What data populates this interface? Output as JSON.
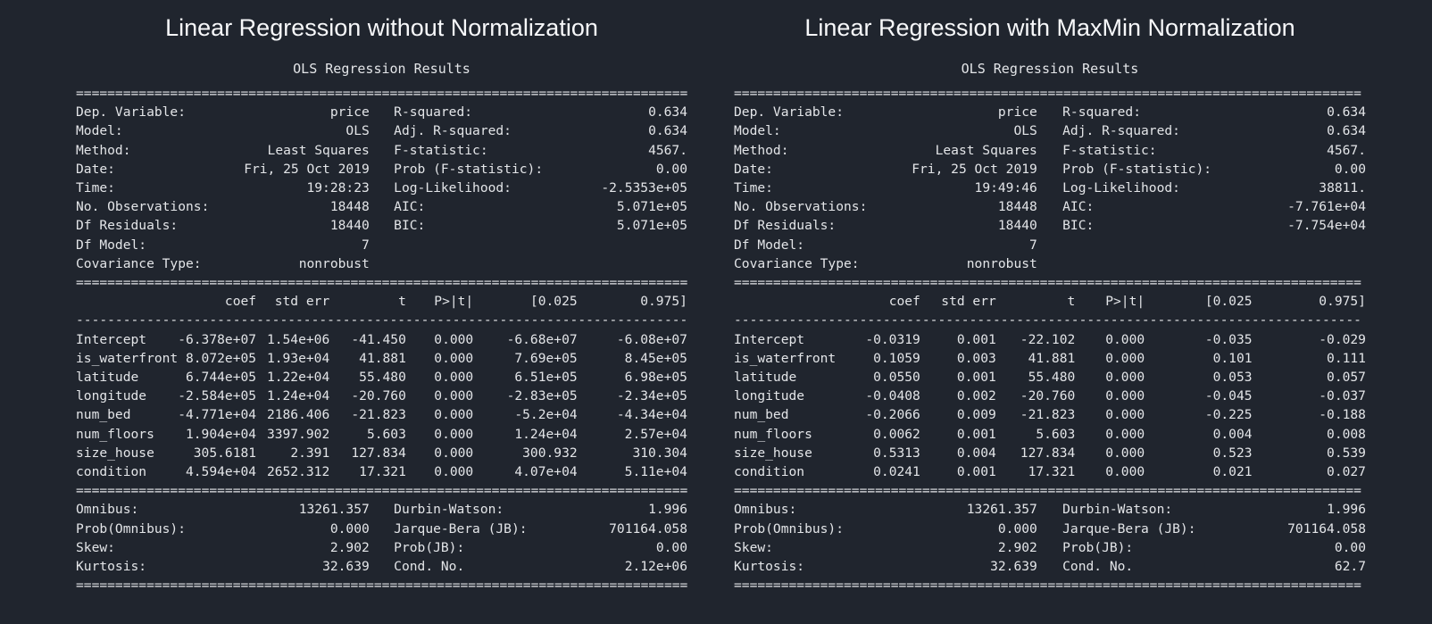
{
  "colors": {
    "background": "#20252e",
    "text": "#e3e5e8",
    "title_text": "#f7f8fa"
  },
  "panels": [
    {
      "title": "Linear Regression without Normalization",
      "subtitle": "OLS Regression Results",
      "sep_eq": "================================================================================",
      "sep_dash": "--------------------------------------------------------------------------------",
      "info_rows": [
        {
          "l_label": "Dep. Variable:",
          "l_value": "price",
          "r_label": "R-squared:",
          "r_value": "0.634"
        },
        {
          "l_label": "Model:",
          "l_value": "OLS",
          "r_label": "Adj. R-squared:",
          "r_value": "0.634"
        },
        {
          "l_label": "Method:",
          "l_value": "Least Squares",
          "r_label": "F-statistic:",
          "r_value": "4567."
        },
        {
          "l_label": "Date:",
          "l_value": "Fri, 25 Oct 2019",
          "r_label": "Prob (F-statistic):",
          "r_value": "0.00"
        },
        {
          "l_label": "Time:",
          "l_value": "19:28:23",
          "r_label": "Log-Likelihood:",
          "r_value": "-2.5353e+05"
        },
        {
          "l_label": "No. Observations:",
          "l_value": "18448",
          "r_label": "AIC:",
          "r_value": "5.071e+05"
        },
        {
          "l_label": "Df Residuals:",
          "l_value": "18440",
          "r_label": "BIC:",
          "r_value": "5.071e+05"
        },
        {
          "l_label": "Df Model:",
          "l_value": "7",
          "r_label": "",
          "r_value": ""
        },
        {
          "l_label": "Covariance Type:",
          "l_value": "nonrobust",
          "r_label": "",
          "r_value": ""
        }
      ],
      "coef_table": {
        "headers": [
          "",
          "coef",
          "std err",
          "t",
          "P>|t|",
          "[0.025",
          "0.975]"
        ],
        "rows": [
          [
            "Intercept",
            "-6.378e+07",
            "1.54e+06",
            "-41.450",
            "0.000",
            "-6.68e+07",
            "-6.08e+07"
          ],
          [
            "is_waterfront",
            "8.072e+05",
            "1.93e+04",
            "41.881",
            "0.000",
            "7.69e+05",
            "8.45e+05"
          ],
          [
            "latitude",
            "6.744e+05",
            "1.22e+04",
            "55.480",
            "0.000",
            "6.51e+05",
            "6.98e+05"
          ],
          [
            "longitude",
            "-2.584e+05",
            "1.24e+04",
            "-20.760",
            "0.000",
            "-2.83e+05",
            "-2.34e+05"
          ],
          [
            "num_bed",
            "-4.771e+04",
            "2186.406",
            "-21.823",
            "0.000",
            "-5.2e+04",
            "-4.34e+04"
          ],
          [
            "num_floors",
            "1.904e+04",
            "3397.902",
            "5.603",
            "0.000",
            "1.24e+04",
            "2.57e+04"
          ],
          [
            "size_house",
            "305.6181",
            "2.391",
            "127.834",
            "0.000",
            "300.932",
            "310.304"
          ],
          [
            "condition",
            "4.594e+04",
            "2652.312",
            "17.321",
            "0.000",
            "4.07e+04",
            "5.11e+04"
          ]
        ]
      },
      "stats_rows": [
        {
          "l_label": "Omnibus:",
          "l_value": "13261.357",
          "r_label": "Durbin-Watson:",
          "r_value": "1.996"
        },
        {
          "l_label": "Prob(Omnibus):",
          "l_value": "0.000",
          "r_label": "Jarque-Bera (JB):",
          "r_value": "701164.058"
        },
        {
          "l_label": "Skew:",
          "l_value": "2.902",
          "r_label": "Prob(JB):",
          "r_value": "0.00"
        },
        {
          "l_label": "Kurtosis:",
          "l_value": "32.639",
          "r_label": "Cond. No.",
          "r_value": "2.12e+06"
        }
      ]
    },
    {
      "title": "Linear Regression with MaxMin Normalization",
      "subtitle": "OLS Regression Results",
      "sep_eq": "================================================================================",
      "sep_dash": "--------------------------------------------------------------------------------",
      "info_rows": [
        {
          "l_label": "Dep. Variable:",
          "l_value": "price",
          "r_label": "R-squared:",
          "r_value": "0.634"
        },
        {
          "l_label": "Model:",
          "l_value": "OLS",
          "r_label": "Adj. R-squared:",
          "r_value": "0.634"
        },
        {
          "l_label": "Method:",
          "l_value": "Least Squares",
          "r_label": "F-statistic:",
          "r_value": "4567."
        },
        {
          "l_label": "Date:",
          "l_value": "Fri, 25 Oct 2019",
          "r_label": "Prob (F-statistic):",
          "r_value": "0.00"
        },
        {
          "l_label": "Time:",
          "l_value": "19:49:46",
          "r_label": "Log-Likelihood:",
          "r_value": "38811."
        },
        {
          "l_label": "No. Observations:",
          "l_value": "18448",
          "r_label": "AIC:",
          "r_value": "-7.761e+04"
        },
        {
          "l_label": "Df Residuals:",
          "l_value": "18440",
          "r_label": "BIC:",
          "r_value": "-7.754e+04"
        },
        {
          "l_label": "Df Model:",
          "l_value": "7",
          "r_label": "",
          "r_value": ""
        },
        {
          "l_label": "Covariance Type:",
          "l_value": "nonrobust",
          "r_label": "",
          "r_value": ""
        }
      ],
      "coef_table": {
        "headers": [
          "",
          "coef",
          "std err",
          "t",
          "P>|t|",
          "[0.025",
          "0.975]"
        ],
        "rows": [
          [
            "Intercept",
            "-0.0319",
            "0.001",
            "-22.102",
            "0.000",
            "-0.035",
            "-0.029"
          ],
          [
            "is_waterfront",
            "0.1059",
            "0.003",
            "41.881",
            "0.000",
            "0.101",
            "0.111"
          ],
          [
            "latitude",
            "0.0550",
            "0.001",
            "55.480",
            "0.000",
            "0.053",
            "0.057"
          ],
          [
            "longitude",
            "-0.0408",
            "0.002",
            "-20.760",
            "0.000",
            "-0.045",
            "-0.037"
          ],
          [
            "num_bed",
            "-0.2066",
            "0.009",
            "-21.823",
            "0.000",
            "-0.225",
            "-0.188"
          ],
          [
            "num_floors",
            "0.0062",
            "0.001",
            "5.603",
            "0.000",
            "0.004",
            "0.008"
          ],
          [
            "size_house",
            "0.5313",
            "0.004",
            "127.834",
            "0.000",
            "0.523",
            "0.539"
          ],
          [
            "condition",
            "0.0241",
            "0.001",
            "17.321",
            "0.000",
            "0.021",
            "0.027"
          ]
        ]
      },
      "stats_rows": [
        {
          "l_label": "Omnibus:",
          "l_value": "13261.357",
          "r_label": "Durbin-Watson:",
          "r_value": "1.996"
        },
        {
          "l_label": "Prob(Omnibus):",
          "l_value": "0.000",
          "r_label": "Jarque-Bera (JB):",
          "r_value": "701164.058"
        },
        {
          "l_label": "Skew:",
          "l_value": "2.902",
          "r_label": "Prob(JB):",
          "r_value": "0.00"
        },
        {
          "l_label": "Kurtosis:",
          "l_value": "32.639",
          "r_label": "Cond. No.",
          "r_value": "62.7"
        }
      ]
    }
  ]
}
